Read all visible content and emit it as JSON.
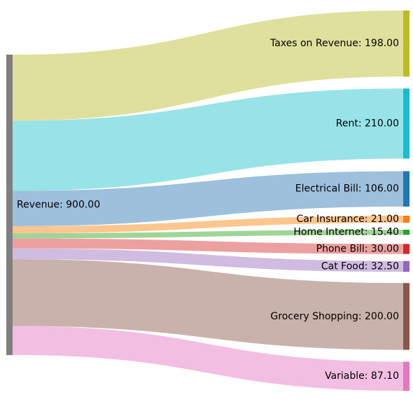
{
  "chart_data": {
    "type": "sankey",
    "source": {
      "name": "Revenue",
      "value": 900.0,
      "label": "Revenue: 900.00",
      "color": "#7f7f7f"
    },
    "targets": [
      {
        "name": "Taxes on Revenue",
        "value": 198.0,
        "label": "Taxes on Revenue: 198.00",
        "color": "#bcbd22",
        "flow_color": "#e0e09e"
      },
      {
        "name": "Rent",
        "value": 210.0,
        "label": "Rent: 210.00",
        "color": "#17becf",
        "flow_color": "#97e3e8"
      },
      {
        "name": "Electrical Bill",
        "value": 106.0,
        "label": "Electrical Bill: 106.00",
        "color": "#1f77b4",
        "flow_color": "#9dc1dc"
      },
      {
        "name": "Car Insurance",
        "value": 21.0,
        "label": "Car Insurance: 21.00",
        "color": "#ff7f0e",
        "flow_color": "#fec68f"
      },
      {
        "name": "Home Internet",
        "value": 15.4,
        "label": "Home Internet: 15.40",
        "color": "#2ca02c",
        "flow_color": "#a0d598"
      },
      {
        "name": "Phone Bill",
        "value": 30.0,
        "label": "Phone Bill: 30.00",
        "color": "#d62728",
        "flow_color": "#eda0a0"
      },
      {
        "name": "Cat Food",
        "value": 32.5,
        "label": "Cat Food: 32.50",
        "color": "#9467bd",
        "flow_color": "#d0bbe1"
      },
      {
        "name": "Grocery Shopping",
        "value": 200.0,
        "label": "Grocery Shopping: 200.00",
        "color": "#8c564b",
        "flow_color": "#c9b2ab"
      },
      {
        "name": "Variable",
        "value": 87.1,
        "label": "Variable: 87.10",
        "color": "#e377c2",
        "flow_color": "#f2bfe2"
      }
    ]
  }
}
